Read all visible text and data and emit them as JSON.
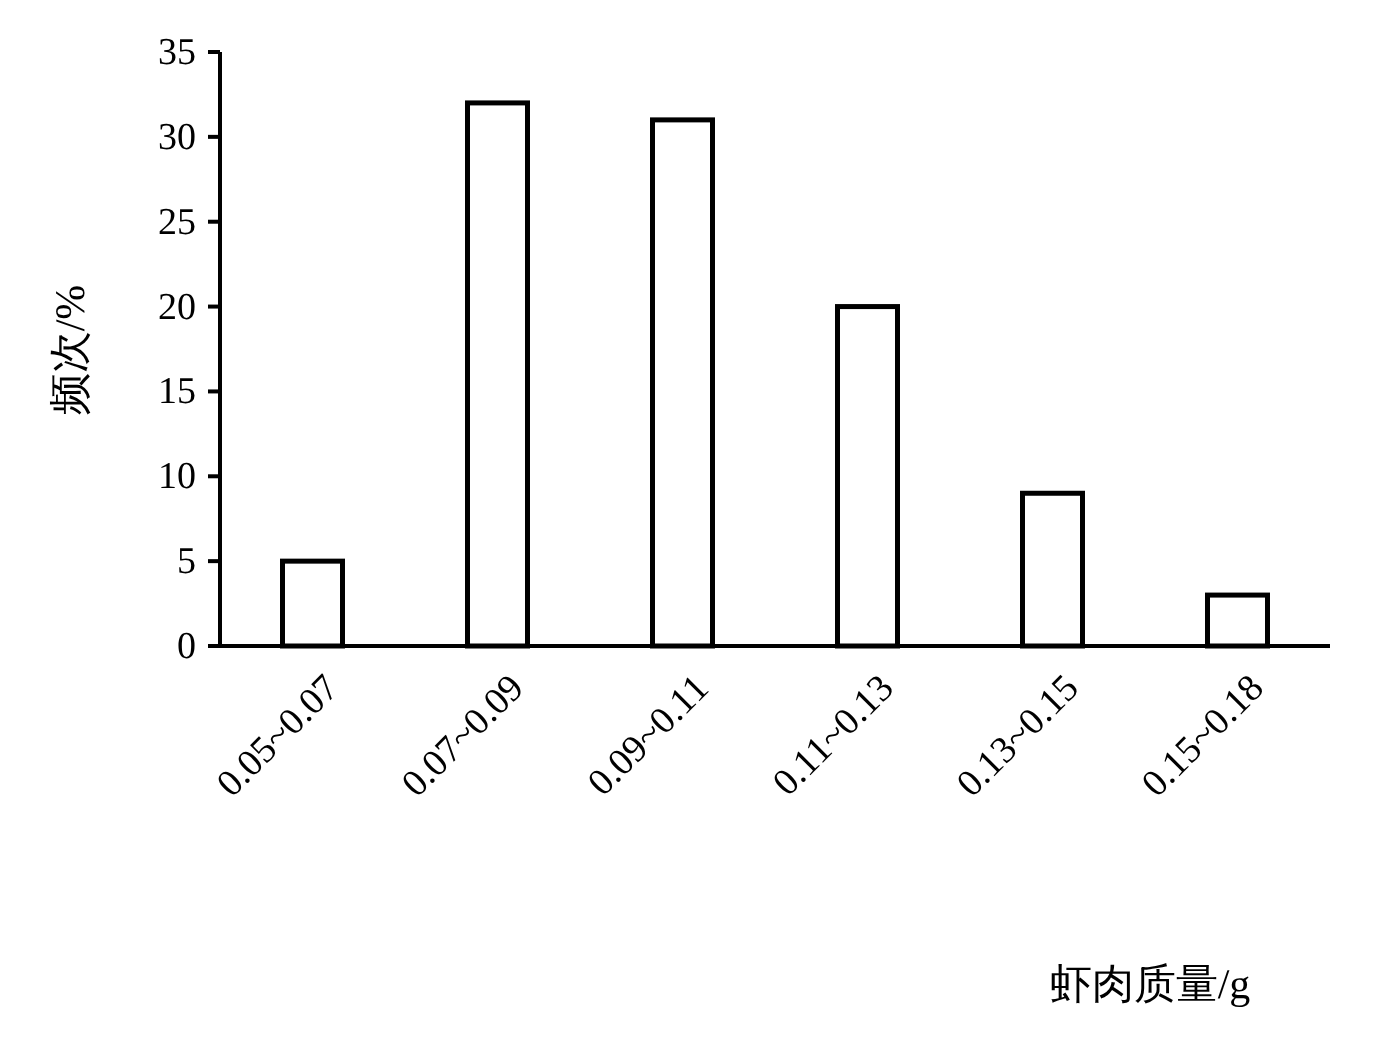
{
  "chart_data": {
    "type": "bar",
    "categories": [
      "0.05~0.07",
      "0.07~0.09",
      "0.09~0.11",
      "0.11~0.13",
      "0.13~0.15",
      "0.15~0.18"
    ],
    "values": [
      5,
      32,
      31,
      20,
      9,
      3
    ],
    "color": "#ffffff",
    "ylim": [
      0,
      35
    ],
    "yticks": [
      0,
      5,
      10,
      15,
      20,
      25,
      30,
      35
    ],
    "xlabel": "虾肉质量/g",
    "ylabel": "频次/%",
    "grid": false
  }
}
